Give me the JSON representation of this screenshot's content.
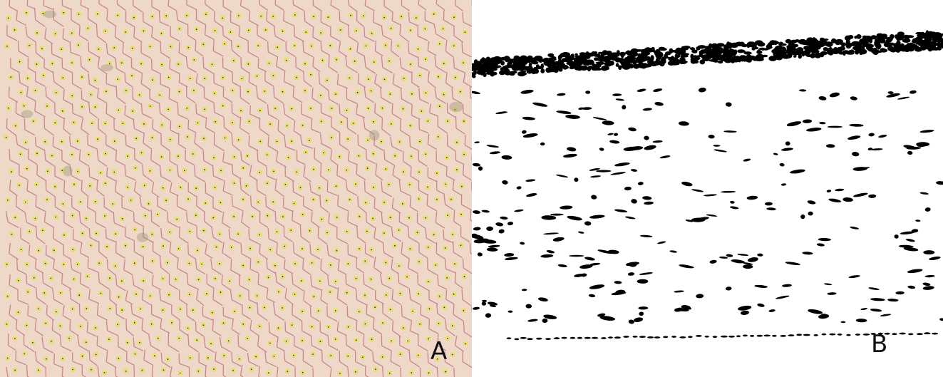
{
  "panels": [
    {
      "label": "A"
    },
    {
      "label": "B"
    }
  ],
  "colors": {
    "tissue": "#eed8c8",
    "cell_border": "#c47585",
    "marker": "#e8e23a",
    "marker_center": "#2a2a1a",
    "ink": "#000000"
  }
}
